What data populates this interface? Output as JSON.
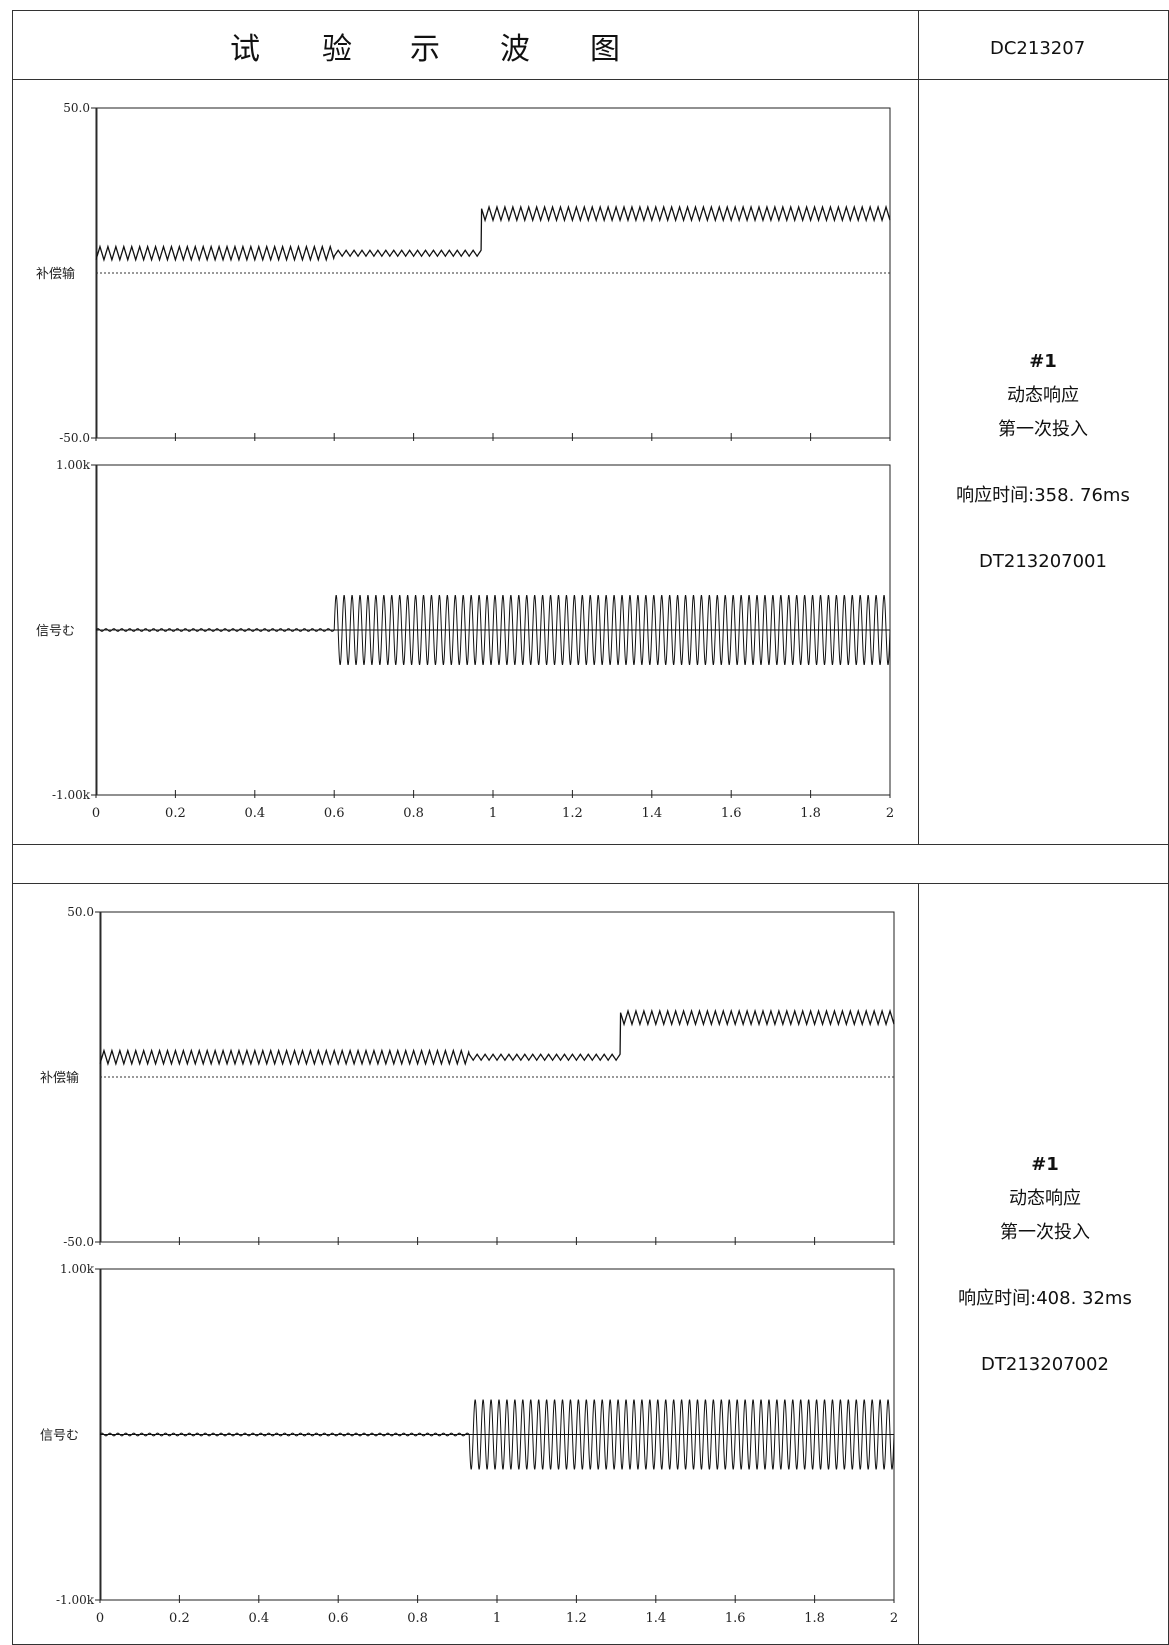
{
  "header": {
    "title_chars": [
      "试",
      "验",
      "示",
      "波",
      "图"
    ],
    "doc_id": "DC213207"
  },
  "panels": [
    {
      "channel": "#1",
      "line1": "动态响应",
      "line2": "第一次投入",
      "response_time": "响应时间:358. 76ms",
      "record_id": "DT213207001"
    },
    {
      "channel": "#1",
      "line1": "动态响应",
      "line2": "第一次投入",
      "response_time": "响应时间:408. 32ms",
      "record_id": "DT213207002"
    }
  ],
  "chart_data": [
    {
      "type": "line",
      "ylabel": "补偿输",
      "ylim": [
        -50,
        50
      ],
      "yticks": [
        "50.0",
        "-50.0"
      ],
      "xlim": [
        0,
        2
      ],
      "grid": false,
      "reference_level": 0,
      "series": [
        {
          "x": [
            0,
            0.59,
            0.6,
            0.97,
            0.971,
            2
          ],
          "y": [
            6,
            6,
            6,
            6,
            18,
            18
          ],
          "ripple": [
            2.0,
            2.0,
            0.9,
            0.9,
            2.0,
            2.0
          ]
        }
      ]
    },
    {
      "type": "line",
      "ylabel": "信号む",
      "ylim": [
        -1000,
        1000
      ],
      "yticks": [
        "1.00k",
        "-1.00k"
      ],
      "xlim": [
        0,
        2
      ],
      "xticks": [
        "0",
        "0.2",
        "0.4",
        "0.6",
        "0.8",
        "1",
        "1.2",
        "1.4",
        "1.6",
        "1.8",
        "2"
      ],
      "grid": false,
      "series": [
        {
          "x": [
            0,
            0.6,
            0.6,
            2
          ],
          "amplitude": [
            8,
            8,
            210,
            210
          ],
          "frequency_hz": 50
        }
      ]
    },
    {
      "type": "line",
      "ylabel": "补偿输",
      "ylim": [
        -50,
        50
      ],
      "yticks": [
        "50.0",
        "-50.0"
      ],
      "xlim": [
        0,
        2
      ],
      "grid": false,
      "reference_level": 0,
      "series": [
        {
          "x": [
            0,
            0.92,
            0.93,
            1.31,
            1.311,
            2
          ],
          "y": [
            6,
            6,
            6,
            6,
            18,
            18
          ],
          "ripple": [
            2.0,
            2.0,
            0.9,
            0.9,
            2.0,
            2.0
          ]
        }
      ]
    },
    {
      "type": "line",
      "ylabel": "信号む",
      "ylim": [
        -1000,
        1000
      ],
      "yticks": [
        "1.00k",
        "-1.00k"
      ],
      "xlim": [
        0,
        2
      ],
      "xticks": [
        "0",
        "0.2",
        "0.4",
        "0.6",
        "0.8",
        "1",
        "1.2",
        "1.4",
        "1.6",
        "1.8",
        "2"
      ],
      "grid": false,
      "series": [
        {
          "x": [
            0,
            0.93,
            0.93,
            2
          ],
          "amplitude": [
            8,
            8,
            210,
            210
          ],
          "frequency_hz": 50
        }
      ]
    }
  ]
}
